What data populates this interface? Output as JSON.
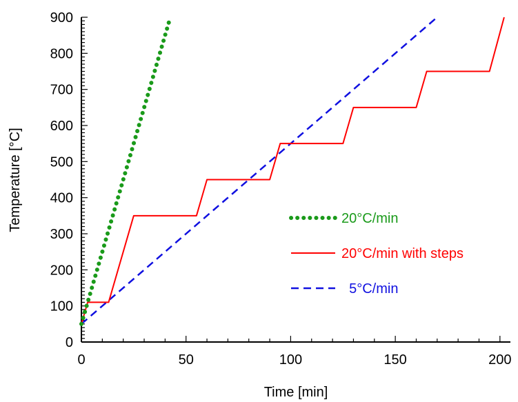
{
  "chart_data": {
    "type": "line",
    "title": "",
    "xlabel": "Time  [min]",
    "ylabel": "Temperature  [°C]",
    "xlim": [
      0,
      205
    ],
    "ylim": [
      0,
      900
    ],
    "x_ticks": [
      "0",
      "50",
      "100",
      "150",
      "200"
    ],
    "y_ticks": [
      "0",
      "100",
      "200",
      "300",
      "400",
      "500",
      "600",
      "700",
      "800",
      "900"
    ],
    "grid": false,
    "legend_position": "right",
    "series": [
      {
        "name": "20°C/min",
        "color": "#1a9a1a",
        "style": "dotted",
        "x": [
          0,
          42.5
        ],
        "y": [
          50,
          900
        ]
      },
      {
        "name": "20°C/min with steps",
        "color": "#ff0000",
        "style": "solid",
        "x": [
          0,
          3,
          13,
          25,
          55,
          60,
          90,
          95,
          125,
          130,
          160,
          165,
          195,
          202
        ],
        "y": [
          50,
          110,
          110,
          350,
          350,
          450,
          450,
          550,
          550,
          650,
          650,
          750,
          750,
          900
        ]
      },
      {
        "name": "5°C/min",
        "color": "#1010e0",
        "style": "dashed",
        "x": [
          0,
          170
        ],
        "y": [
          50,
          900
        ]
      }
    ],
    "legend_labels": [
      "20°C/min",
      "20°C/min with steps",
      "  5°C/min"
    ]
  }
}
